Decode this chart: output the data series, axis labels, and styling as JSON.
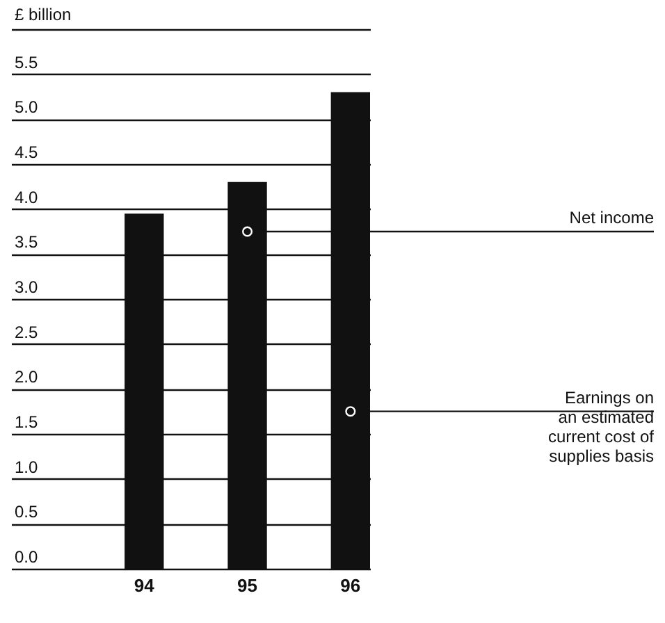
{
  "chart_data": {
    "type": "bar",
    "ylabel": "£ billion",
    "categories": [
      "94",
      "95",
      "96"
    ],
    "values": [
      3.95,
      4.3,
      5.3
    ],
    "color": "#111111",
    "ylim": [
      0,
      6
    ],
    "yticks": [
      {
        "value": 0,
        "label": "0.0"
      },
      0.5,
      {
        "value": 1,
        "label": "1.0"
      },
      1.5,
      {
        "value": 2,
        "label": "2.0"
      },
      2.5,
      {
        "value": 3,
        "label": "3.0"
      },
      3.5,
      {
        "value": 4,
        "label": "4.0"
      },
      4.5,
      {
        "value": 5,
        "label": "5.0"
      },
      5.5,
      {
        "value": 6,
        "label": null
      }
    ],
    "grid": "y",
    "annotations": [
      {
        "text": "Net income",
        "x": "95",
        "y": 3.75
      },
      {
        "text": "Earnings on\nan estimated\ncurrent cost of\nsupplies basis",
        "x": "96",
        "y": 1.75
      }
    ]
  }
}
